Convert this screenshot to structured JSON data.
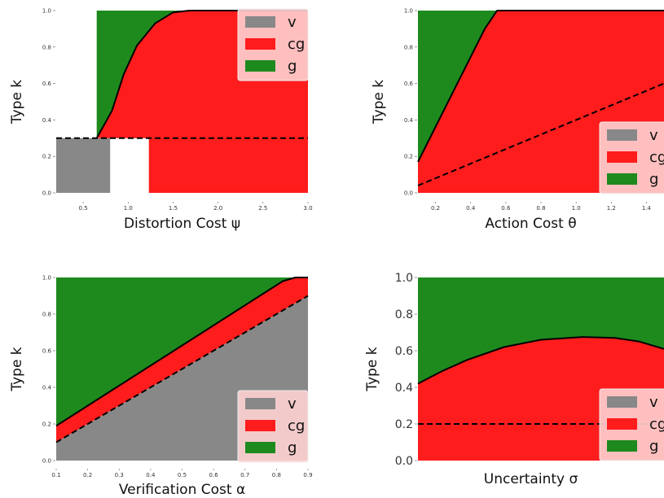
{
  "colors": {
    "v": "#888888",
    "cg": "#ff1c1c",
    "g": "#1e8a1e",
    "legend_bg": "#ffd1d1"
  },
  "chart_data": [
    {
      "type": "area",
      "xlabel": "Distortion Cost ψ",
      "ylabel": "Type k",
      "xlim": [
        0.2,
        3.0
      ],
      "ylim": [
        0,
        1
      ],
      "xticks": [
        "0.5",
        "1.0",
        "1.5",
        "2.0",
        "2.5",
        "3.0"
      ],
      "yticks": [
        "0.0",
        "0.2",
        "0.4",
        "0.6",
        "0.8",
        "1.0"
      ],
      "legend": [
        "v",
        "cg",
        "g"
      ],
      "legend_position": "top-right",
      "regions": {
        "v": [
          [
            0.2,
            0
          ],
          [
            0.8,
            0
          ],
          [
            0.8,
            0.3
          ],
          [
            0.2,
            0.3
          ]
        ],
        "cg": [
          [
            1.23,
            0
          ],
          [
            3.0,
            0
          ],
          [
            3.0,
            1.0
          ],
          [
            1.68,
            1.0
          ],
          [
            1.5,
            0.99
          ],
          [
            1.3,
            0.93
          ],
          [
            1.1,
            0.81
          ],
          [
            0.95,
            0.65
          ],
          [
            0.82,
            0.45
          ],
          [
            0.65,
            0.3
          ],
          [
            1.23,
            0.3
          ]
        ],
        "g": [
          [
            0.65,
            0.3
          ],
          [
            0.82,
            0.45
          ],
          [
            0.95,
            0.65
          ],
          [
            1.1,
            0.81
          ],
          [
            1.3,
            0.93
          ],
          [
            1.5,
            0.99
          ],
          [
            1.68,
            1.0
          ],
          [
            0.65,
            1.0
          ]
        ]
      },
      "boundary_solid": [
        [
          0.65,
          0.3
        ],
        [
          0.82,
          0.45
        ],
        [
          0.95,
          0.65
        ],
        [
          1.1,
          0.81
        ],
        [
          1.3,
          0.93
        ],
        [
          1.5,
          0.99
        ],
        [
          1.68,
          1.0
        ],
        [
          3.0,
          1.0
        ]
      ],
      "boundary_dashed": [
        [
          0.2,
          0.3
        ],
        [
          3.0,
          0.3
        ]
      ]
    },
    {
      "type": "area",
      "xlabel": "Action Cost θ",
      "ylabel": "Type k",
      "xlim": [
        0.1,
        1.5
      ],
      "ylim": [
        0,
        1
      ],
      "xticks": [
        "0.2",
        "0.4",
        "0.6",
        "0.8",
        "1.0",
        "1.2",
        "1.4"
      ],
      "yticks": [
        "0.0",
        "0.2",
        "0.4",
        "0.6",
        "0.8",
        "1.0"
      ],
      "legend": [
        "v",
        "cg",
        "g"
      ],
      "legend_position": "bottom-right",
      "regions": {
        "cg": [
          [
            0.1,
            0
          ],
          [
            1.5,
            0
          ],
          [
            1.5,
            1.0
          ],
          [
            0.55,
            1.0
          ],
          [
            0.48,
            0.9
          ],
          [
            0.1,
            0.17
          ]
        ],
        "g": [
          [
            0.1,
            0.17
          ],
          [
            0.48,
            0.9
          ],
          [
            0.55,
            1.0
          ],
          [
            0.1,
            1.0
          ]
        ]
      },
      "boundary_solid": [
        [
          0.1,
          0.17
        ],
        [
          0.48,
          0.9
        ],
        [
          0.55,
          1.0
        ],
        [
          1.5,
          1.0
        ]
      ],
      "boundary_dashed": [
        [
          0.1,
          0.04
        ],
        [
          1.5,
          0.6
        ]
      ]
    },
    {
      "type": "area",
      "xlabel": "Verification Cost α",
      "ylabel": "Type k",
      "xlim": [
        0.1,
        0.9
      ],
      "ylim": [
        0,
        1
      ],
      "xticks": [
        "0.1",
        "0.2",
        "0.3",
        "0.4",
        "0.5",
        "0.6",
        "0.7",
        "0.8",
        "0.9"
      ],
      "yticks": [
        "0.0",
        "0.2",
        "0.4",
        "0.6",
        "0.8",
        "1.0"
      ],
      "legend": [
        "v",
        "cg",
        "g"
      ],
      "legend_position": "bottom-right",
      "regions": {
        "v": [
          [
            0.1,
            0
          ],
          [
            0.9,
            0
          ],
          [
            0.9,
            0.9
          ],
          [
            0.1,
            0.1
          ]
        ],
        "cg": [
          [
            0.1,
            0.1
          ],
          [
            0.9,
            0.9
          ],
          [
            0.9,
            1.0
          ],
          [
            0.86,
            1.0
          ],
          [
            0.82,
            0.98
          ],
          [
            0.1,
            0.19
          ]
        ],
        "g": [
          [
            0.1,
            0.19
          ],
          [
            0.82,
            0.98
          ],
          [
            0.86,
            1.0
          ],
          [
            0.1,
            1.0
          ]
        ]
      },
      "boundary_solid": [
        [
          0.1,
          0.19
        ],
        [
          0.82,
          0.98
        ],
        [
          0.86,
          1.0
        ],
        [
          0.9,
          1.0
        ]
      ],
      "boundary_dashed": [
        [
          0.1,
          0.1
        ],
        [
          0.9,
          0.9
        ]
      ]
    },
    {
      "type": "area",
      "xlabel": "Uncertainty σ",
      "ylabel": "Type k",
      "xlim": [
        0,
        1
      ],
      "ylim": [
        0,
        1
      ],
      "xticks": [],
      "yticks": [
        "0.0",
        "0.2",
        "0.4",
        "0.6",
        "0.8",
        "1.0"
      ],
      "legend": [
        "v",
        "cg",
        "g"
      ],
      "legend_position": "bottom-right",
      "regions": {
        "cg": [
          [
            0,
            0
          ],
          [
            1,
            0
          ],
          [
            1,
            0.61
          ],
          [
            0.9,
            0.65
          ],
          [
            0.8,
            0.67
          ],
          [
            0.67,
            0.675
          ],
          [
            0.5,
            0.66
          ],
          [
            0.35,
            0.62
          ],
          [
            0.2,
            0.55
          ],
          [
            0.1,
            0.49
          ],
          [
            0,
            0.42
          ]
        ],
        "g": [
          [
            0,
            0.42
          ],
          [
            0.1,
            0.49
          ],
          [
            0.2,
            0.55
          ],
          [
            0.35,
            0.62
          ],
          [
            0.5,
            0.66
          ],
          [
            0.67,
            0.675
          ],
          [
            0.8,
            0.67
          ],
          [
            0.9,
            0.65
          ],
          [
            1,
            0.61
          ],
          [
            1,
            1
          ],
          [
            0,
            1
          ]
        ]
      },
      "boundary_solid": [
        [
          0,
          0.42
        ],
        [
          0.1,
          0.49
        ],
        [
          0.2,
          0.55
        ],
        [
          0.35,
          0.62
        ],
        [
          0.5,
          0.66
        ],
        [
          0.67,
          0.675
        ],
        [
          0.8,
          0.67
        ],
        [
          0.9,
          0.65
        ],
        [
          1,
          0.61
        ]
      ],
      "boundary_dashed": [
        [
          0,
          0.2
        ],
        [
          1,
          0.2
        ]
      ]
    }
  ]
}
